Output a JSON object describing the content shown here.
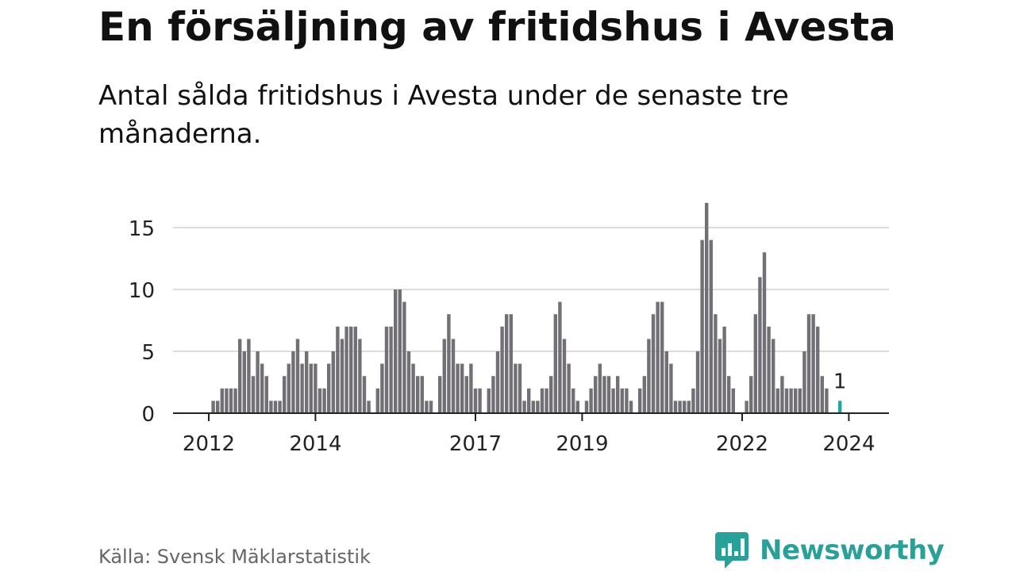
{
  "title": "En försäljning av fritidshus i Avesta",
  "subtitle": "Antal sålda fritidshus i Avesta under de senaste tre månaderna.",
  "source": "Källa: Svensk Mäklarstatistik",
  "brand": {
    "name": "Newsworthy",
    "color": "#2aa198"
  },
  "colors": {
    "bar": "#727076",
    "highlight": "#21a89a",
    "grid": "#dddddd",
    "axis": "#222222"
  },
  "chart_data": {
    "type": "bar",
    "ylim": [
      0,
      17
    ],
    "yticks": [
      0,
      5,
      10,
      15
    ],
    "xtick_labels": [
      "2012",
      "2014",
      "2017",
      "2019",
      "2022",
      "2024"
    ],
    "xtick_months": [
      0,
      24,
      60,
      84,
      120,
      144
    ],
    "grid": true,
    "start_month": "2012-01",
    "values": [
      0,
      1,
      1,
      2,
      2,
      2,
      2,
      6,
      5,
      6,
      3,
      5,
      4,
      3,
      1,
      1,
      1,
      3,
      4,
      5,
      6,
      4,
      5,
      4,
      4,
      2,
      2,
      4,
      5,
      7,
      6,
      7,
      7,
      7,
      6,
      3,
      1,
      0,
      2,
      4,
      7,
      7,
      10,
      10,
      9,
      5,
      4,
      3,
      3,
      1,
      1,
      0,
      3,
      6,
      8,
      6,
      4,
      4,
      3,
      4,
      2,
      2,
      0,
      2,
      3,
      5,
      7,
      8,
      8,
      4,
      4,
      1,
      2,
      1,
      1,
      2,
      2,
      3,
      8,
      9,
      6,
      4,
      2,
      1,
      0,
      1,
      2,
      3,
      4,
      3,
      3,
      2,
      3,
      2,
      2,
      1,
      0,
      2,
      3,
      6,
      8,
      9,
      9,
      5,
      4,
      1,
      1,
      1,
      1,
      2,
      5,
      14,
      17,
      14,
      8,
      6,
      7,
      3,
      2,
      0,
      0,
      1,
      3,
      8,
      11,
      13,
      7,
      6,
      2,
      3,
      2,
      2,
      2,
      2,
      5,
      8,
      8,
      7,
      3,
      2,
      0,
      0,
      1
    ],
    "highlight_label": "1"
  }
}
